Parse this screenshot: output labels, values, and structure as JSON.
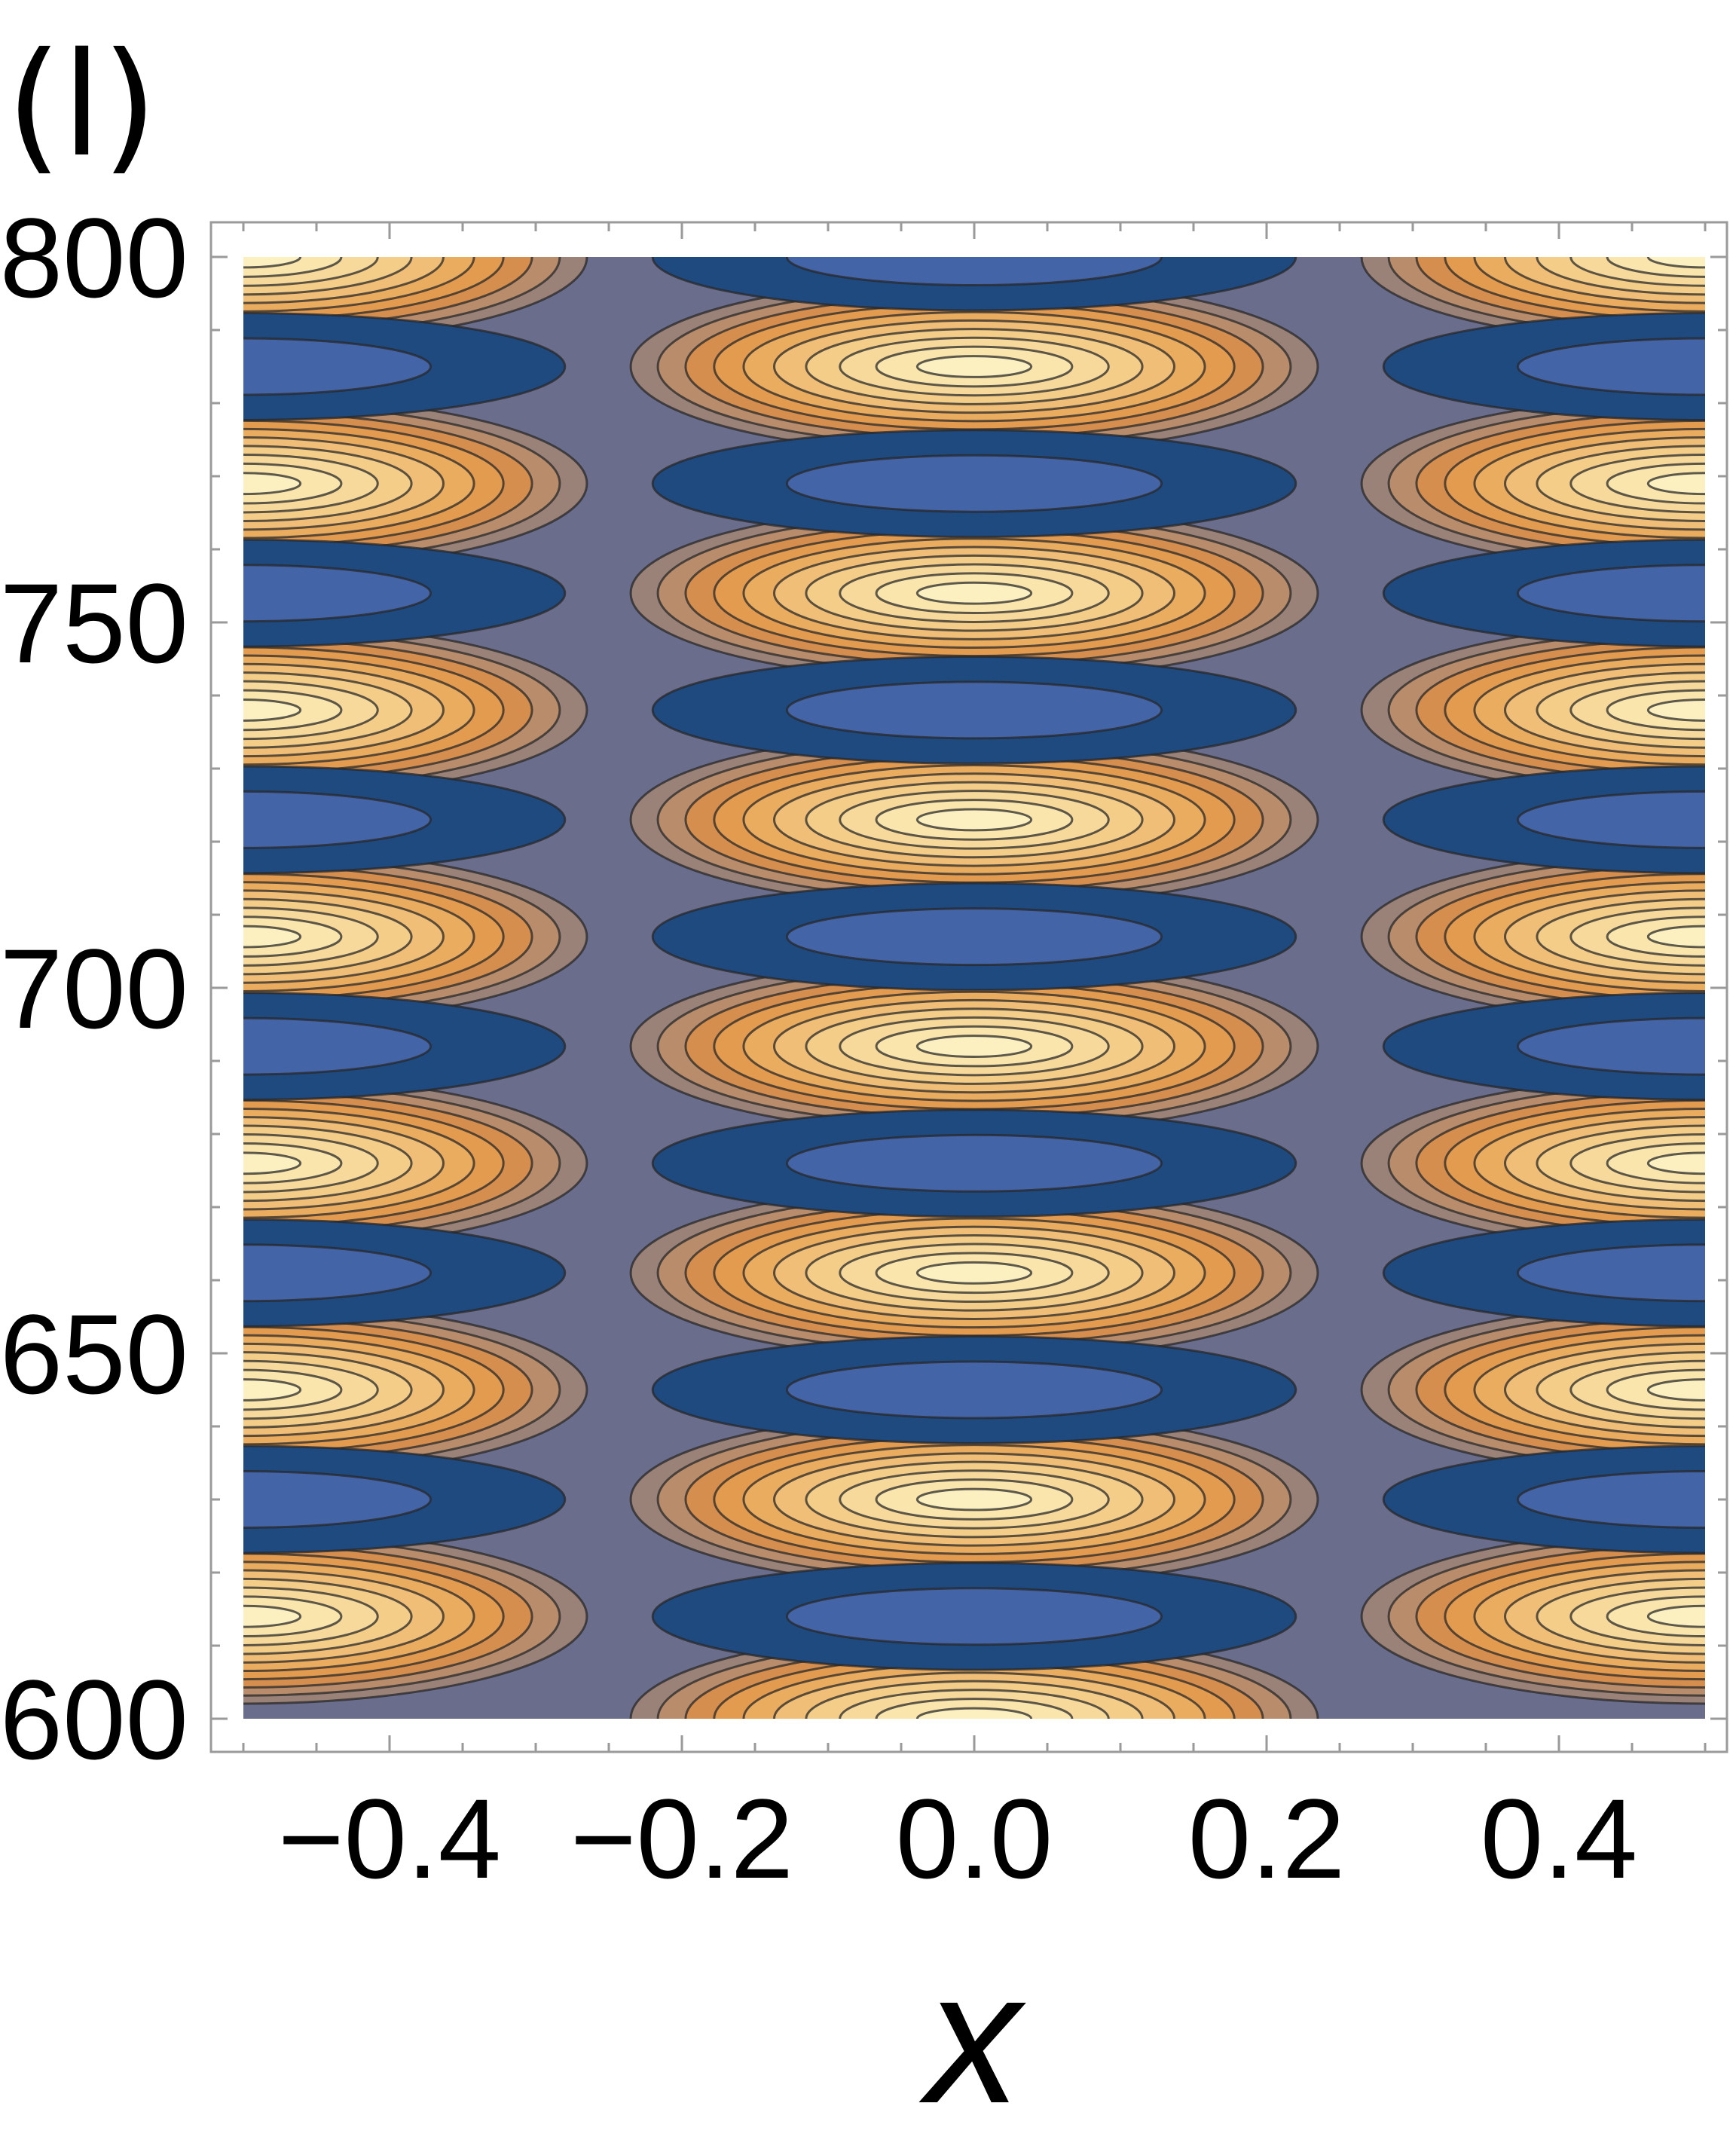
{
  "panel_label": "(l)",
  "chart_data": {
    "type": "contour",
    "title": "",
    "xlabel": "x",
    "ylabel": "",
    "xlim": [
      -0.5,
      0.5
    ],
    "ylim": [
      600,
      800
    ],
    "x_ticks": [
      -0.4,
      -0.2,
      0.0,
      0.2,
      0.4
    ],
    "x_tick_labels": [
      "−0.4",
      "−0.2",
      "0.0",
      "0.2",
      "0.4"
    ],
    "y_ticks": [
      600,
      650,
      700,
      750,
      800
    ],
    "y_tick_labels": [
      "600",
      "650",
      "700",
      "750",
      "800"
    ],
    "grid": false,
    "legend": "none",
    "colormap": {
      "negative": [
        "#1f4a80",
        "#4464a8"
      ],
      "zero": "#6b6d8c",
      "positive": [
        "#9a8279",
        "#b98d6c",
        "#d68e4e",
        "#e39b4f",
        "#eaac5f",
        "#f0be76",
        "#f4cd89",
        "#f7da9b",
        "#fae6ad",
        "#fcf0c0"
      ]
    },
    "bands": [
      {
        "x_center": -0.5,
        "kind": "edge-lobe"
      },
      {
        "x_center": 0.0,
        "kind": "center-lobe"
      },
      {
        "x_center": 0.5,
        "kind": "edge-lobe"
      }
    ],
    "center_peak_y": [
      600,
      630,
      661,
      692,
      723,
      754,
      785
    ],
    "center_trough_y": [
      614,
      645,
      676,
      707,
      738,
      769,
      800
    ],
    "edge_peak_y": [
      614,
      645,
      676,
      707,
      738,
      769,
      800
    ],
    "edge_trough_y": [
      630,
      661,
      692,
      723,
      754,
      785
    ]
  }
}
